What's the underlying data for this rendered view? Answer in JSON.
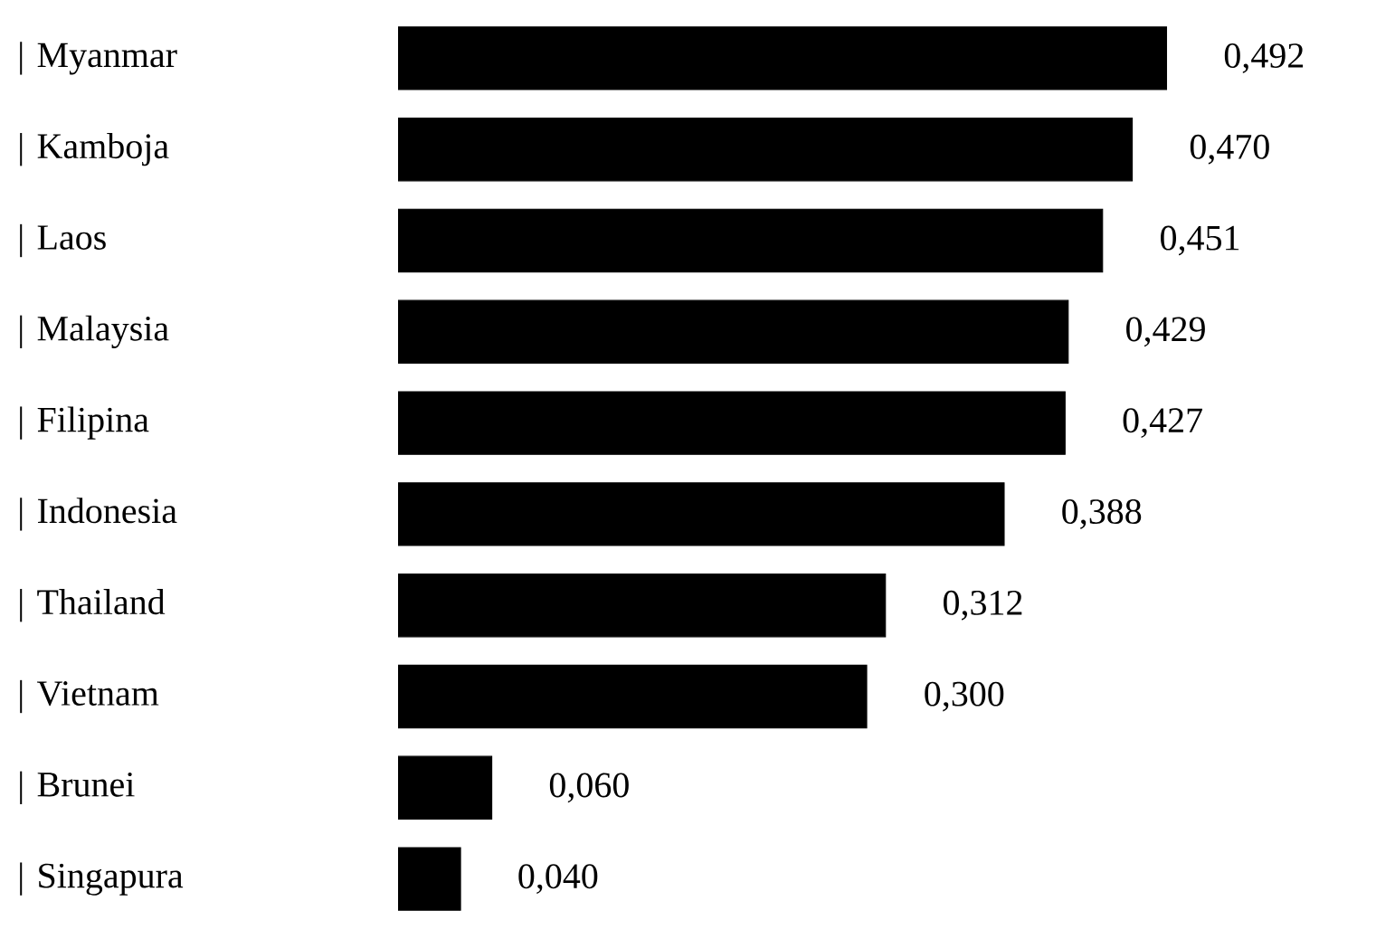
{
  "chart_data": {
    "type": "bar",
    "orientation": "horizontal",
    "categories": [
      "| Myanmar",
      "| Kamboja",
      "| Laos",
      "| Malaysia",
      "| Filipina",
      "| Indonesia",
      "| Thailand",
      "| Vietnam",
      "| Brunei",
      "| Singapura"
    ],
    "values": [
      0.492,
      0.47,
      0.451,
      0.429,
      0.427,
      0.388,
      0.312,
      0.3,
      0.06,
      0.04
    ],
    "value_labels": [
      "0,492",
      "0,470",
      "0,451",
      "0,429",
      "0,427",
      "0,388",
      "0,312",
      "0,300",
      "0,060",
      "0,040"
    ],
    "color": "#000000",
    "tick_labels": "y"
  }
}
